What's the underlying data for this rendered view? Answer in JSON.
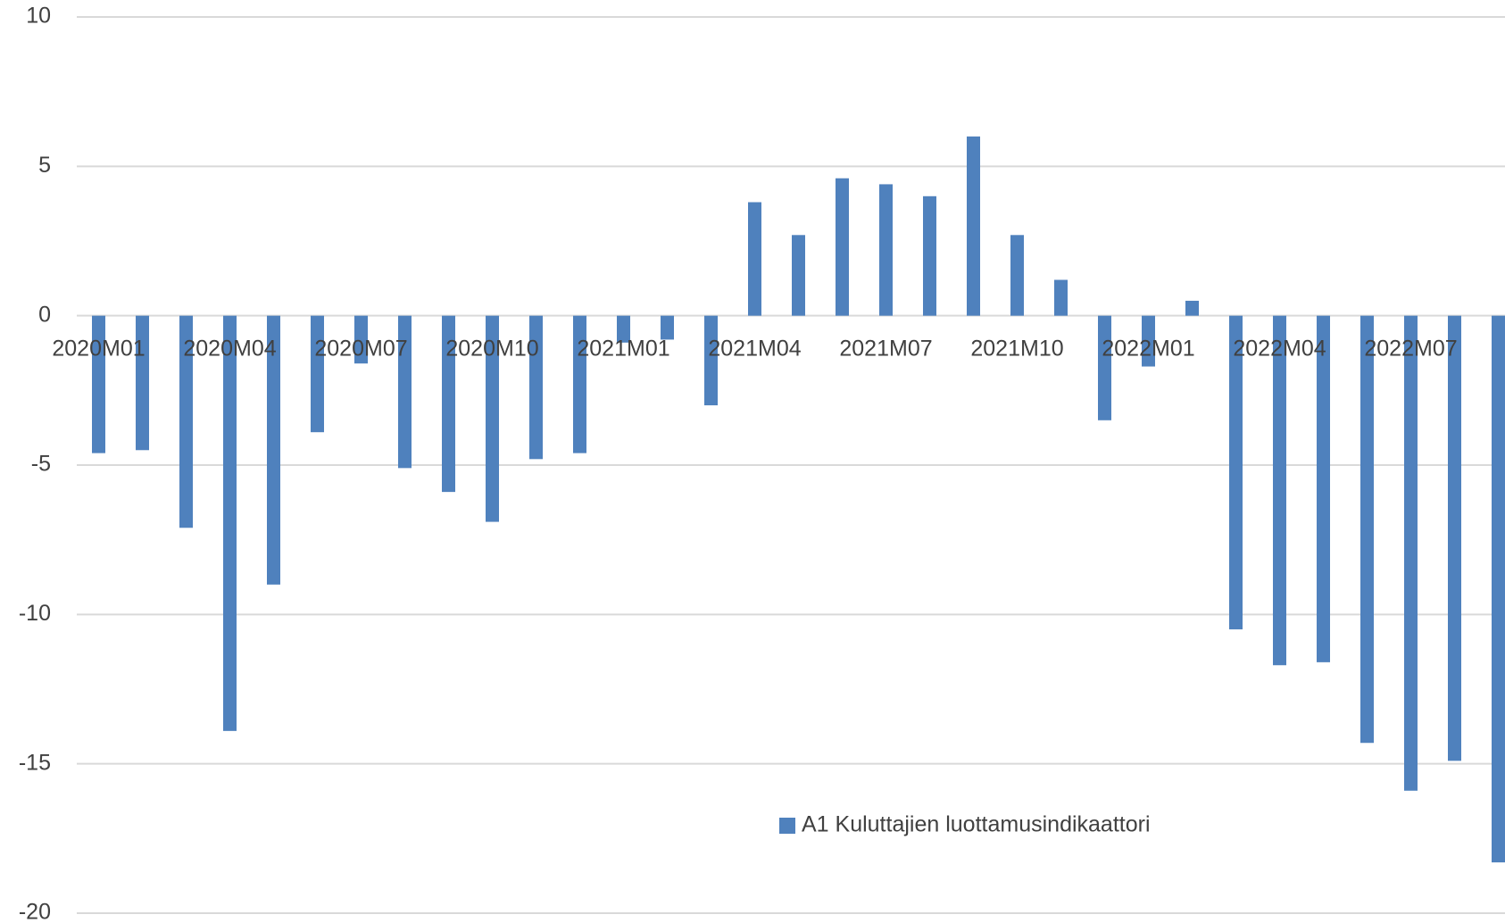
{
  "chart_data": {
    "type": "bar",
    "categories": [
      "2020M01",
      null,
      null,
      "2020M04",
      null,
      null,
      "2020M07",
      null,
      null,
      "2020M10",
      null,
      null,
      "2021M01",
      null,
      null,
      "2021M04",
      null,
      null,
      "2021M07",
      null,
      null,
      "2021M10",
      null,
      null,
      "2022M01",
      null,
      null,
      "2022M04",
      null,
      null,
      "2022M07",
      null,
      null
    ],
    "series": [
      {
        "name": "A1 Kuluttajien luottamusindikaattori",
        "color": "#4f81bd",
        "values": [
          -4.6,
          -4.5,
          -7.1,
          -13.9,
          -9.0,
          -3.9,
          -1.6,
          -5.1,
          -5.9,
          -6.9,
          -4.8,
          -4.6,
          -0.9,
          -0.8,
          -3.0,
          3.8,
          2.7,
          4.6,
          4.4,
          4.0,
          6.0,
          2.7,
          1.2,
          -3.5,
          -1.7,
          0.5,
          -10.5,
          -11.7,
          -11.6,
          -14.3,
          -15.9,
          -14.9,
          -18.3
        ]
      }
    ],
    "ylim": [
      -20,
      10
    ],
    "yticks": [
      -20,
      -15,
      -10,
      -5,
      0,
      5,
      10
    ],
    "grid": true,
    "legend": "bottom"
  }
}
